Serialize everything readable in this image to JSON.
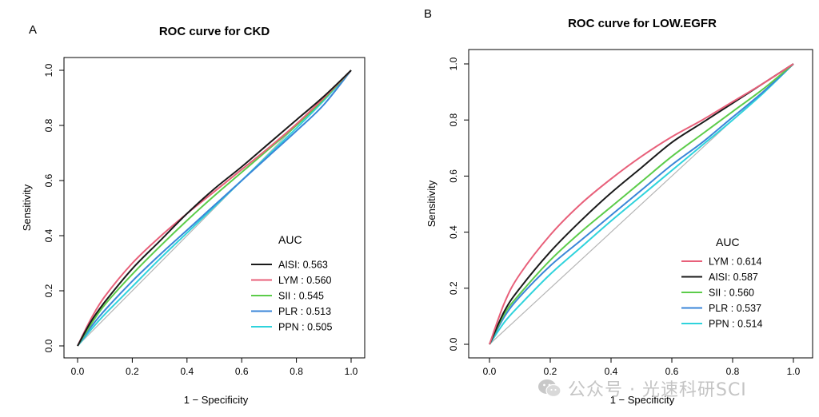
{
  "panels": [
    {
      "letter": "A",
      "title": "ROC curve for CKD",
      "legend_title": "AUC"
    },
    {
      "letter": "B",
      "title": "ROC curve for LOW.EGFR",
      "legend_title": "AUC"
    }
  ],
  "watermark": {
    "text": "公众号 · 光速科研SCI",
    "icon": "wechat-icon"
  },
  "chart_data": [
    {
      "type": "line",
      "title": "ROC curve for CKD",
      "xlabel": "1 − Specificity",
      "ylabel": "Sensitivity",
      "xlim": [
        0,
        1
      ],
      "ylim": [
        0,
        1
      ],
      "xticks": [
        "0.0",
        "0.2",
        "0.4",
        "0.6",
        "0.8",
        "1.0"
      ],
      "yticks": [
        "0.0",
        "0.2",
        "0.4",
        "0.6",
        "0.8",
        "1.0"
      ],
      "grid": false,
      "legend": {
        "title": "AUC",
        "position": "bottom-right"
      },
      "reference_line": {
        "x": [
          0,
          1
        ],
        "y": [
          0,
          1
        ],
        "color": "#b5b5b5"
      },
      "series": [
        {
          "name": "AISI: 0.563",
          "color": "#1a1a1a",
          "x": [
            0,
            0.05,
            0.1,
            0.2,
            0.3,
            0.4,
            0.5,
            0.6,
            0.7,
            0.8,
            0.9,
            1.0
          ],
          "y": [
            0,
            0.09,
            0.16,
            0.28,
            0.38,
            0.48,
            0.57,
            0.65,
            0.735,
            0.82,
            0.905,
            1.0
          ]
        },
        {
          "name": "LYM : 0.560",
          "color": "#e8607a",
          "x": [
            0,
            0.05,
            0.1,
            0.2,
            0.3,
            0.4,
            0.5,
            0.6,
            0.7,
            0.8,
            0.9,
            1.0
          ],
          "y": [
            0,
            0.1,
            0.18,
            0.3,
            0.395,
            0.48,
            0.56,
            0.64,
            0.72,
            0.805,
            0.9,
            1.0
          ]
        },
        {
          "name": "SII : 0.545",
          "color": "#5ccc4a",
          "x": [
            0,
            0.05,
            0.1,
            0.2,
            0.3,
            0.4,
            0.5,
            0.6,
            0.7,
            0.8,
            0.9,
            1.0
          ],
          "y": [
            0,
            0.08,
            0.15,
            0.26,
            0.36,
            0.455,
            0.545,
            0.63,
            0.715,
            0.8,
            0.895,
            1.0
          ]
        },
        {
          "name": "PLR : 0.513",
          "color": "#3a86d8",
          "x": [
            0,
            0.05,
            0.1,
            0.2,
            0.3,
            0.4,
            0.5,
            0.6,
            0.7,
            0.8,
            0.9,
            1.0
          ],
          "y": [
            0,
            0.07,
            0.13,
            0.235,
            0.33,
            0.42,
            0.51,
            0.6,
            0.69,
            0.78,
            0.875,
            1.0
          ]
        },
        {
          "name": "PPN : 0.505",
          "color": "#2fd3dc",
          "x": [
            0,
            0.05,
            0.1,
            0.2,
            0.3,
            0.4,
            0.5,
            0.6,
            0.7,
            0.8,
            0.9,
            1.0
          ],
          "y": [
            0,
            0.06,
            0.115,
            0.215,
            0.315,
            0.41,
            0.505,
            0.6,
            0.695,
            0.79,
            0.89,
            1.0
          ]
        }
      ]
    },
    {
      "type": "line",
      "title": "ROC curve for LOW.EGFR",
      "xlabel": "1 − Specificity",
      "ylabel": "Sensitivity",
      "xlim": [
        0,
        1
      ],
      "ylim": [
        0,
        1
      ],
      "xticks": [
        "0.0",
        "0.2",
        "0.4",
        "0.6",
        "0.8",
        "1.0"
      ],
      "yticks": [
        "0.0",
        "0.2",
        "0.4",
        "0.6",
        "0.8",
        "1.0"
      ],
      "grid": false,
      "legend": {
        "title": "AUC",
        "position": "bottom-right"
      },
      "reference_line": {
        "x": [
          0,
          1
        ],
        "y": [
          0,
          1
        ],
        "color": "#b5b5b5"
      },
      "series": [
        {
          "name": "LYM : 0.614",
          "color": "#e8607a",
          "x": [
            0,
            0.05,
            0.1,
            0.2,
            0.3,
            0.4,
            0.5,
            0.6,
            0.7,
            0.8,
            0.9,
            1.0
          ],
          "y": [
            0,
            0.15,
            0.25,
            0.39,
            0.5,
            0.59,
            0.67,
            0.74,
            0.8,
            0.865,
            0.93,
            1.0
          ]
        },
        {
          "name": "AISI: 0.587",
          "color": "#1a1a1a",
          "x": [
            0,
            0.05,
            0.1,
            0.2,
            0.3,
            0.4,
            0.5,
            0.6,
            0.7,
            0.8,
            0.9,
            1.0
          ],
          "y": [
            0,
            0.12,
            0.2,
            0.33,
            0.44,
            0.54,
            0.63,
            0.72,
            0.79,
            0.86,
            0.93,
            1.0
          ]
        },
        {
          "name": "SII : 0.560",
          "color": "#5ccc4a",
          "x": [
            0,
            0.05,
            0.1,
            0.2,
            0.3,
            0.4,
            0.5,
            0.6,
            0.7,
            0.8,
            0.9,
            1.0
          ],
          "y": [
            0,
            0.11,
            0.18,
            0.3,
            0.4,
            0.49,
            0.58,
            0.67,
            0.75,
            0.83,
            0.91,
            1.0
          ]
        },
        {
          "name": "PLR : 0.537",
          "color": "#3a86d8",
          "x": [
            0,
            0.05,
            0.1,
            0.2,
            0.3,
            0.4,
            0.5,
            0.6,
            0.7,
            0.8,
            0.9,
            1.0
          ],
          "y": [
            0,
            0.1,
            0.17,
            0.28,
            0.37,
            0.46,
            0.55,
            0.64,
            0.72,
            0.81,
            0.9,
            1.0
          ]
        },
        {
          "name": "PPN : 0.514",
          "color": "#2fd3dc",
          "x": [
            0,
            0.05,
            0.1,
            0.2,
            0.3,
            0.4,
            0.5,
            0.6,
            0.7,
            0.8,
            0.9,
            1.0
          ],
          "y": [
            0,
            0.08,
            0.14,
            0.25,
            0.345,
            0.44,
            0.53,
            0.62,
            0.71,
            0.8,
            0.895,
            1.0
          ]
        }
      ]
    }
  ]
}
